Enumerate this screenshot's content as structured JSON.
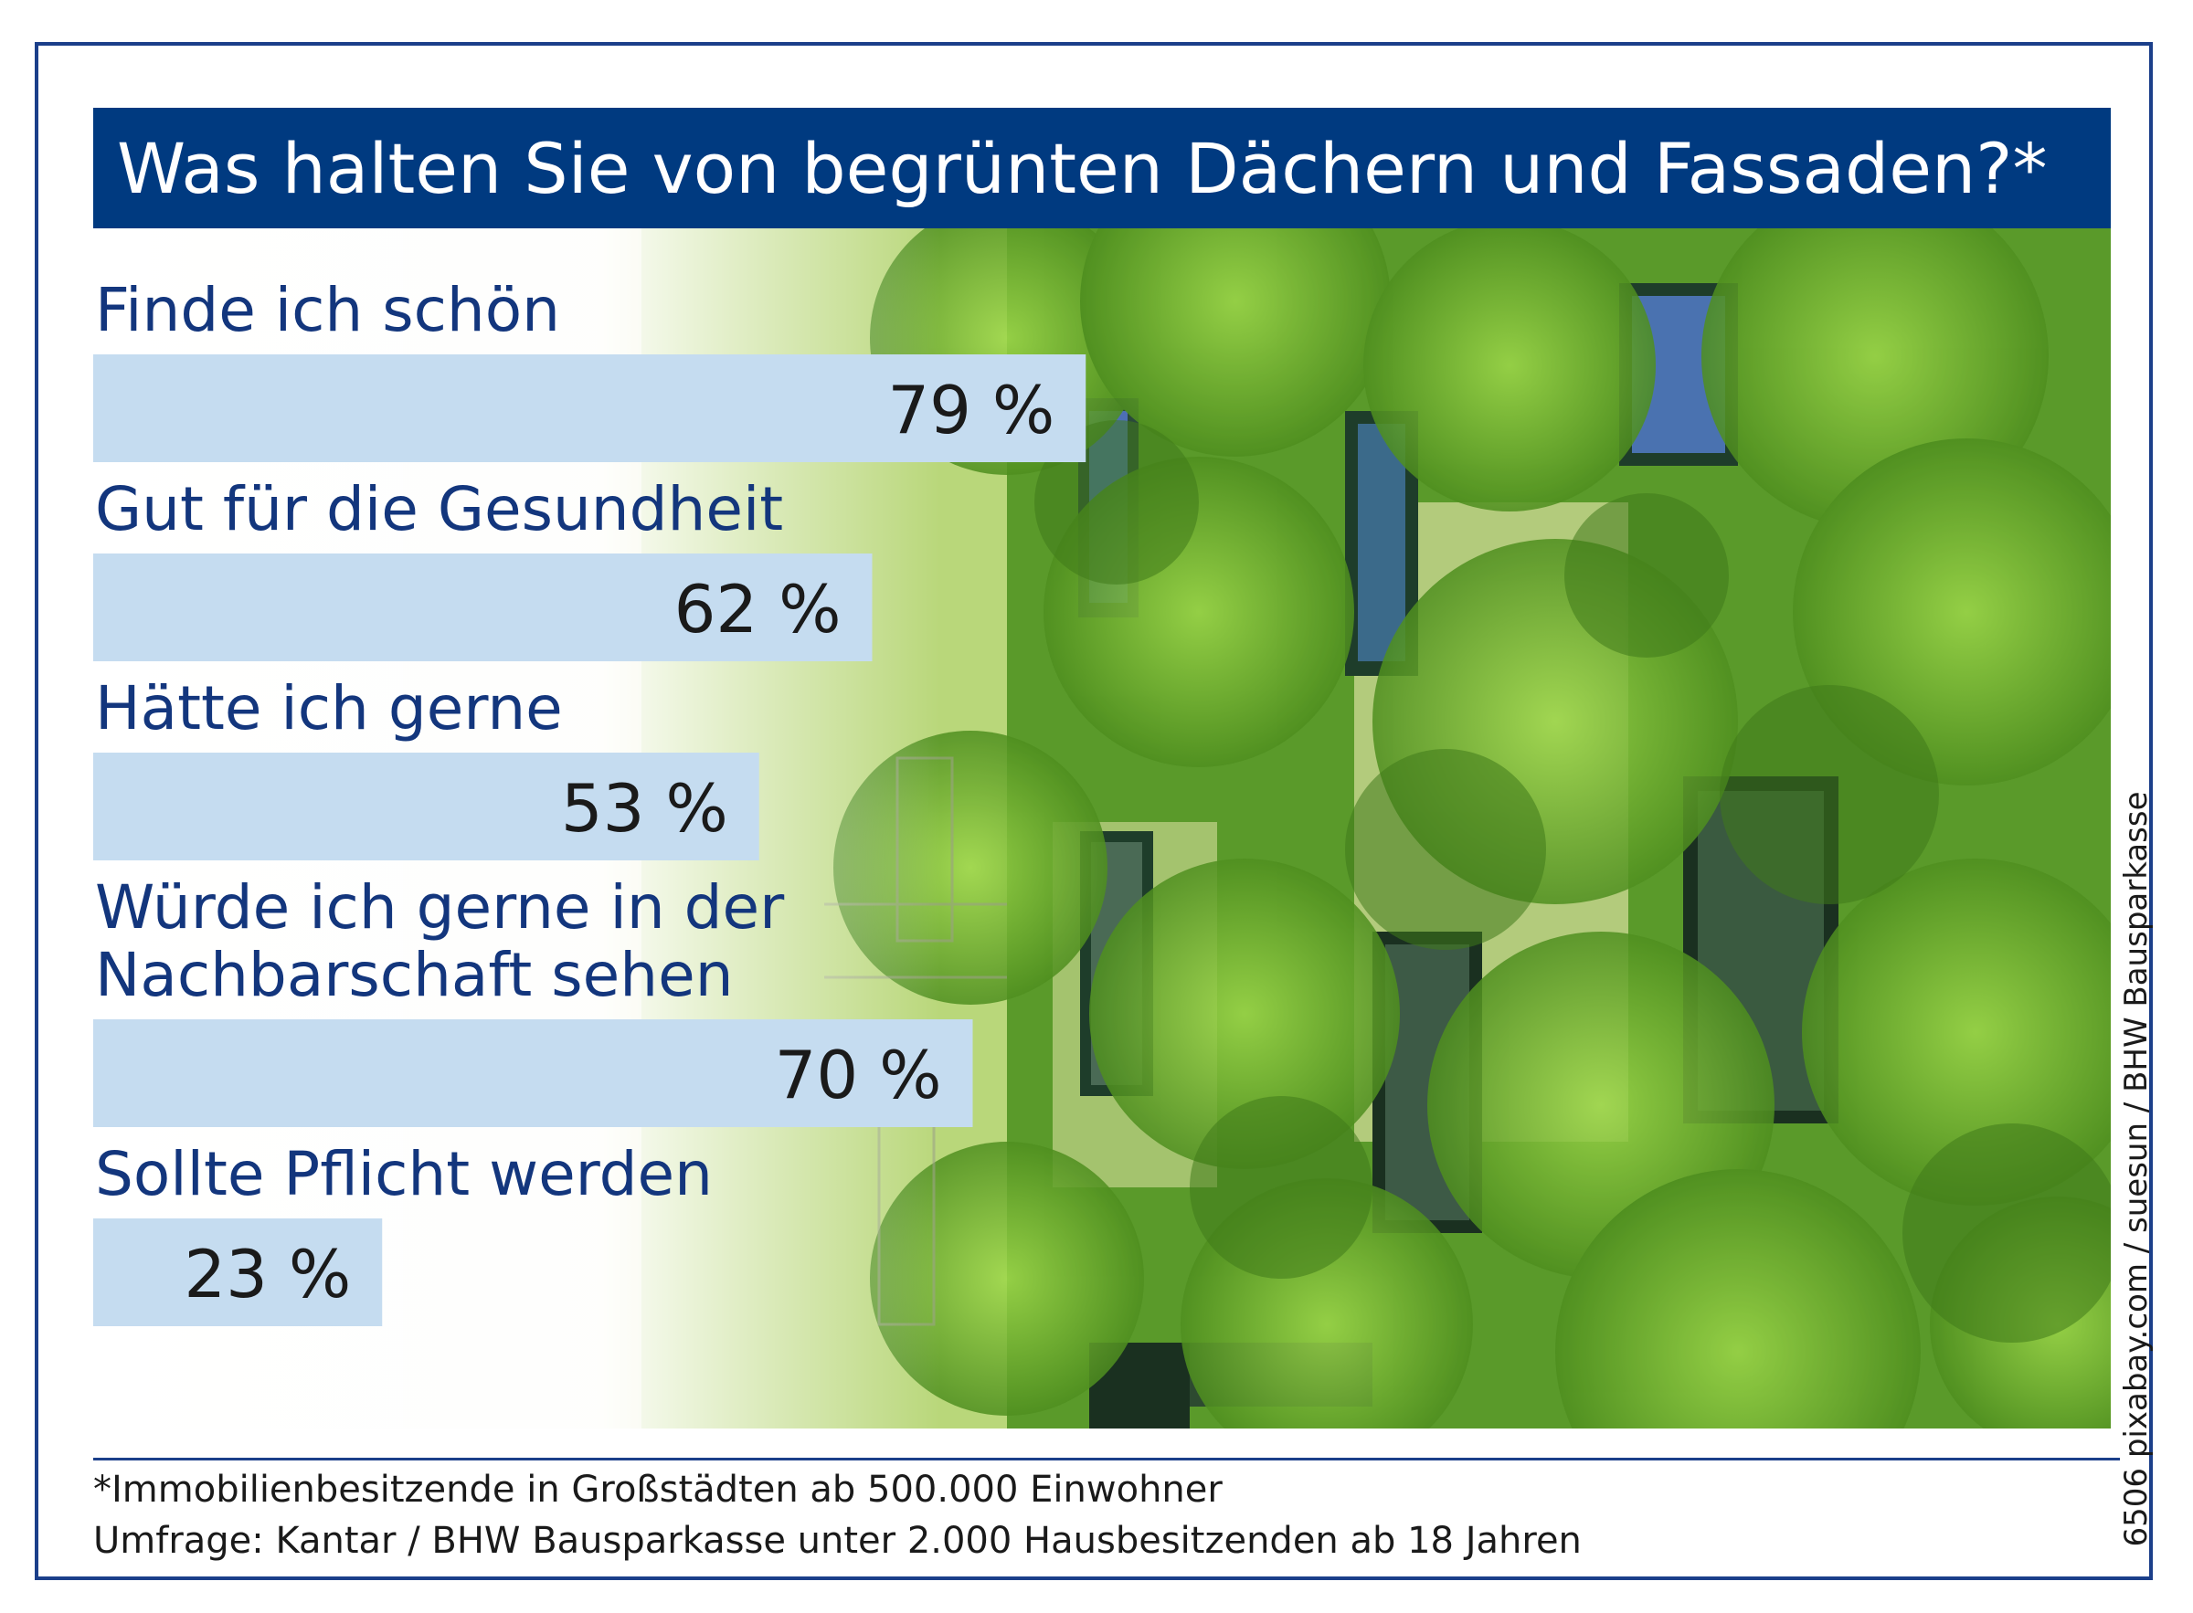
{
  "credit": "6506 pixabay.com / suesun / BHW Bausparkasse",
  "footnotes": {
    "line1": "*Immobilienbesitzende in Großstädten ab 500.000 Einwohner",
    "line2": "Umfrage: Kantar / BHW Bausparkasse unter 2.000 Hausbesitzenden ab 18 Jahren"
  },
  "chart_data": {
    "type": "bar",
    "orientation": "horizontal",
    "title": "Was halten Sie von begrünten Dächern und Fassaden?*",
    "categories": [
      [
        "Finde ich schön"
      ],
      [
        "Gut für die Gesundheit"
      ],
      [
        "Hätte ich gerne"
      ],
      [
        "Würde ich gerne in der",
        "Nachbarschaft sehen"
      ],
      [
        "Sollte Pflicht werden"
      ]
    ],
    "values": [
      79,
      62,
      53,
      70,
      23
    ],
    "value_labels": [
      "79 %",
      "62 %",
      "53 %",
      "70 %",
      "23 %"
    ],
    "unit": "%",
    "xlim": [
      0,
      100
    ],
    "grid": false,
    "bar_color": "#c5dcf0",
    "title_color": "#003a80",
    "label_color": "#13367d"
  }
}
